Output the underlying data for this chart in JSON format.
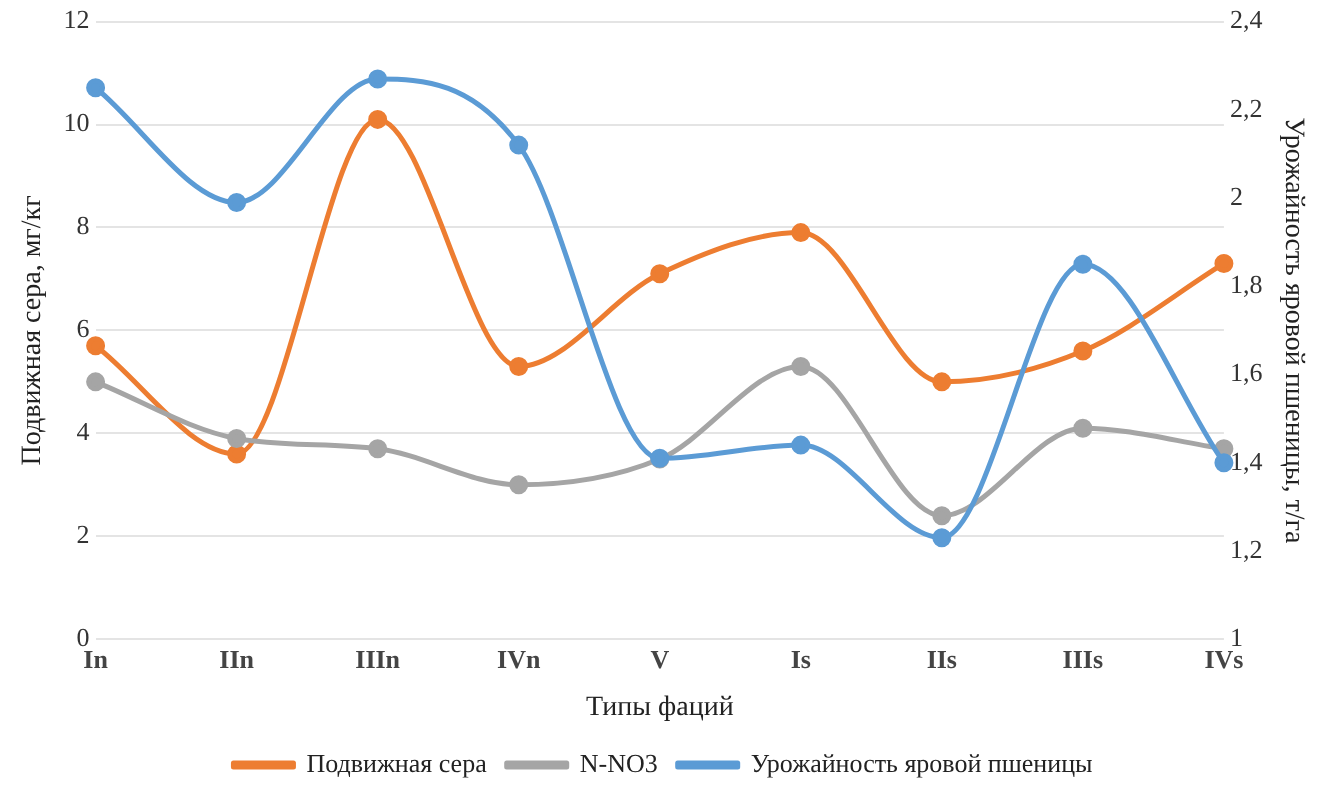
{
  "chart_data": {
    "type": "line",
    "xlabel": "Типы фаций",
    "ylabel": "Подвижная сера, мг/кг",
    "y2label": "Урожайность яровой пшеницы, т/га",
    "categories": [
      "In",
      "IIn",
      "IIIn",
      "IVn",
      "V",
      "Is",
      "IIs",
      "IIIs",
      "IVs"
    ],
    "series": [
      {
        "name": "Подвижная сера",
        "color": "#ed7d31",
        "values": [
          5.7,
          3.6,
          10.1,
          5.3,
          7.1,
          7.9,
          5.0,
          5.6,
          7.3
        ]
      },
      {
        "name": "N-NO3",
        "color": "#a5a5a5",
        "values": [
          5.0,
          3.9,
          3.7,
          3.0,
          3.5,
          5.3,
          2.4,
          4.1,
          3.7
        ]
      },
      {
        "name": "Урожайность яровой пшеницы",
        "color": "#5b9bd5",
        "axis": "y2",
        "values": [
          2.25,
          1.99,
          2.27,
          2.12,
          1.41,
          1.44,
          1.23,
          1.85,
          1.4
        ]
      }
    ],
    "ylim": [
      0,
      12
    ],
    "yticks": [
      0,
      2,
      4,
      6,
      8,
      10,
      12
    ],
    "y2lim": [
      1,
      2.4
    ],
    "y2ticks": [
      1,
      {
        "value": 1.2,
        "label": "1,2"
      },
      {
        "value": 1.4,
        "label": "1,4"
      },
      {
        "value": 1.6,
        "label": "1,6"
      },
      {
        "value": 1.8,
        "label": "1,8"
      },
      2,
      {
        "value": 2.2,
        "label": "2,2"
      },
      {
        "value": 2.4,
        "label": "2,4"
      }
    ],
    "grid": "y",
    "legend": "bottom",
    "marker": "circle",
    "line_style": "solid"
  }
}
